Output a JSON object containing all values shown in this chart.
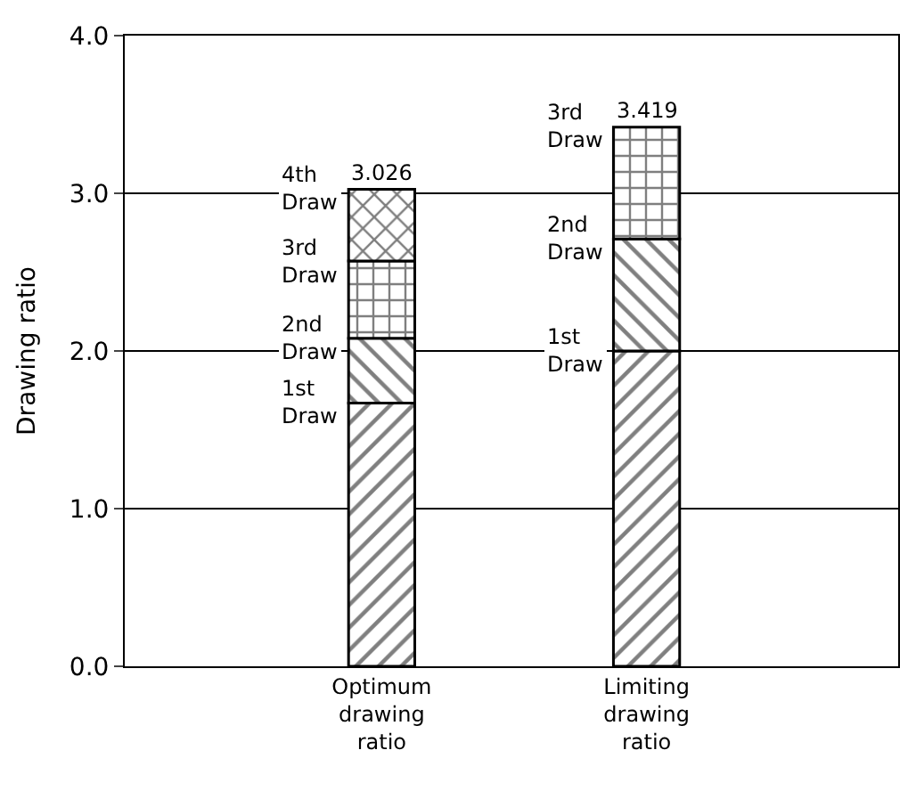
{
  "chart_data": {
    "type": "bar",
    "stacked": true,
    "ylabel": "Drawing ratio",
    "categories": [
      "Optimum drawing ratio",
      "Limiting drawing ratio"
    ],
    "series": [
      {
        "name": "1st Draw",
        "color": "#000000",
        "values": [
          1.67,
          2.0
        ]
      },
      {
        "name": "2nd Draw",
        "color": "#000000",
        "values": [
          0.41,
          0.71
        ]
      },
      {
        "name": "3rd Draw",
        "color": "#000000",
        "values": [
          0.49,
          0.709
        ]
      },
      {
        "name": "4th Draw",
        "color": "#000000",
        "values": [
          0.456,
          null
        ]
      }
    ],
    "totals": [
      "3.026",
      "3.419"
    ],
    "ylim": [
      0,
      4.0
    ],
    "yticks": [
      {
        "value": 0,
        "label": "0.0"
      },
      {
        "value": 1,
        "label": "1.0"
      },
      {
        "value": 2,
        "label": "2.0"
      },
      {
        "value": 3,
        "label": "3.0"
      },
      {
        "value": 4,
        "label": "4.0"
      }
    ],
    "grid": "y",
    "legend": false
  }
}
